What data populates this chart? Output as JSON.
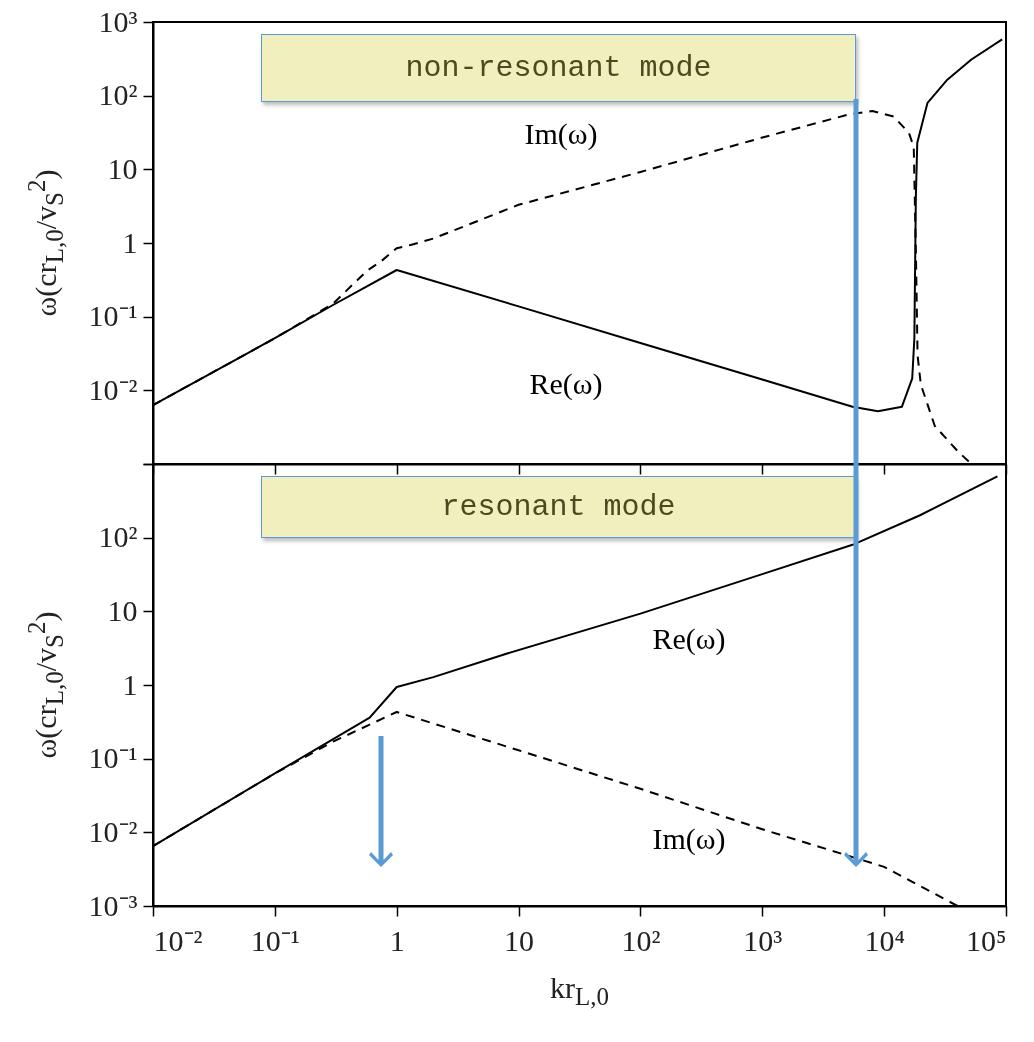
{
  "chart_data": [
    {
      "type": "line",
      "ylabel": "ω(cr$_{L,0}$/v$_{S}$$^{2}$)",
      "log": "xy",
      "tick_labels": "y",
      "xlim": [
        0.01,
        100000
      ],
      "xticks": [
        {
          "value": 0.01,
          "label": null
        },
        {
          "value": 0.1,
          "label": null
        },
        {
          "value": 1,
          "label": null
        },
        {
          "value": 10,
          "label": null
        },
        {
          "value": 100,
          "label": null
        },
        {
          "value": 1000,
          "label": null
        },
        {
          "value": 10000,
          "label": null
        },
        {
          "value": 100000,
          "label": null
        }
      ],
      "ylim": [
        0.001,
        1000
      ],
      "yticks": [
        {
          "value": 0.001,
          "label": null
        },
        {
          "value": 0.01,
          "label": "10⁻²"
        },
        {
          "value": 0.1,
          "label": "10⁻¹"
        },
        {
          "value": 1,
          "label": "1"
        },
        {
          "value": 10,
          "label": "10"
        },
        {
          "value": 100,
          "label": "10²"
        },
        {
          "value": 1000,
          "label": "10³"
        }
      ],
      "series": [
        {
          "name": "Re(ω)",
          "color": "#000000",
          "line_style": "solid",
          "x": [
            0.01,
            0.1,
            0.3,
            1,
            10,
            100,
            1000,
            5500,
            8900,
            14000,
            17000,
            17700,
            18200,
            18700,
            22700,
            33000,
            52000,
            93000
          ],
          "values": [
            0.0063,
            0.051,
            0.144,
            0.43,
            0.138,
            0.044,
            0.014,
            0.006,
            0.0052,
            0.006,
            0.0145,
            0.051,
            4.1,
            23,
            80,
            165,
            310,
            580
          ]
        },
        {
          "name": "Im(ω)",
          "color": "#000000",
          "line_style": "dashed",
          "x": [
            0.01,
            0.1,
            0.3,
            0.57,
            0.75,
            1,
            1.3,
            2,
            10,
            100,
            1000,
            5000,
            8000,
            12000,
            16000,
            17500,
            18300,
            18800,
            20000,
            26000,
            40000,
            52000
          ],
          "values": [
            0.0063,
            0.051,
            0.15,
            0.42,
            0.57,
            0.85,
            0.94,
            1.15,
            3.3,
            9.2,
            27,
            55,
            62,
            52,
            31,
            20,
            0.5,
            0.03,
            0.012,
            0.0033,
            0.0015,
            0.001
          ]
        }
      ],
      "annotations": [
        "non-resonant mode"
      ]
    },
    {
      "type": "line",
      "xlabel": "kr$_{L,0}$",
      "ylabel": "ω(cr$_{L,0}$/v$_{S}$$^{2}$)",
      "log": "xy",
      "xlim": [
        0.01,
        100000
      ],
      "xticks": [
        {
          "value": 0.01,
          "label": "10⁻²"
        },
        {
          "value": 0.1,
          "label": "10⁻¹"
        },
        {
          "value": 1,
          "label": "1"
        },
        {
          "value": 10,
          "label": "10"
        },
        {
          "value": 100,
          "label": "10²"
        },
        {
          "value": 1000,
          "label": "10³"
        },
        {
          "value": 10000,
          "label": "10⁴"
        },
        {
          "value": 100000,
          "label": "10⁵"
        }
      ],
      "ylim": [
        0.001,
        1000
      ],
      "yticks": [
        {
          "value": 0.001,
          "label": "10⁻³"
        },
        {
          "value": 0.01,
          "label": "10⁻²"
        },
        {
          "value": 0.1,
          "label": "10⁻¹"
        },
        {
          "value": 1,
          "label": "1"
        },
        {
          "value": 10,
          "label": "10"
        },
        {
          "value": 100,
          "label": "10²"
        },
        {
          "value": 1000,
          "label": null
        }
      ],
      "series": [
        {
          "name": "Re(ω)",
          "color": "#000000",
          "line_style": "solid",
          "x": [
            0.01,
            0.1,
            0.6,
            1,
            2,
            7.6,
            100,
            1000,
            5500,
            19500,
            85000
          ],
          "values": [
            0.0065,
            0.063,
            0.36,
            0.94,
            1.28,
            2.6,
            9.3,
            32,
            80,
            200,
            680
          ]
        },
        {
          "name": "Im(ω)",
          "color": "#000000",
          "line_style": "dashed",
          "x": [
            0.01,
            0.1,
            0.3,
            0.6,
            1,
            10,
            100,
            1000,
            10000,
            40000
          ],
          "values": [
            0.0065,
            0.063,
            0.17,
            0.29,
            0.43,
            0.13,
            0.039,
            0.011,
            0.0034,
            0.001
          ]
        }
      ],
      "annotations": [
        "resonant mode"
      ]
    }
  ]
}
